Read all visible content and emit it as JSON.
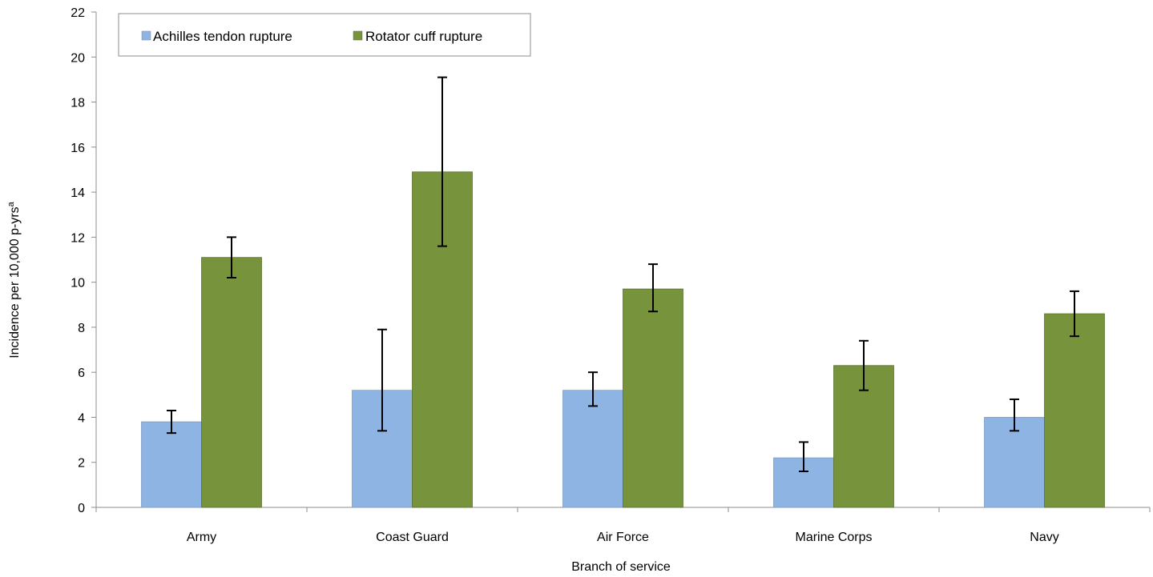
{
  "chart_data": {
    "type": "bar",
    "title": "",
    "xlabel": "Branch of service",
    "ylabel": "Incidence per 10,000 p-yrs",
    "ylabel_superscript": "a",
    "ylim": [
      0,
      22
    ],
    "yticks": [
      0,
      2,
      4,
      6,
      8,
      10,
      12,
      14,
      16,
      18,
      20,
      22
    ],
    "grid": false,
    "legend_position": "top-left",
    "categories": [
      "Army",
      "Coast Guard",
      "Air Force",
      "Marine Corps",
      "Navy"
    ],
    "series": [
      {
        "name": "Achilles tendon rupture",
        "color": "#8eb4e3",
        "values": [
          3.8,
          5.2,
          5.2,
          2.2,
          4.0
        ],
        "error_low": [
          3.3,
          3.4,
          4.5,
          1.6,
          3.4
        ],
        "error_high": [
          4.3,
          7.9,
          6.0,
          2.9,
          4.8
        ]
      },
      {
        "name": "Rotator cuff rupture",
        "color": "#77933c",
        "values": [
          11.1,
          14.9,
          9.7,
          6.3,
          8.6
        ],
        "error_low": [
          10.2,
          11.6,
          8.7,
          5.2,
          7.6
        ],
        "error_high": [
          12.0,
          19.1,
          10.8,
          7.4,
          9.6
        ]
      }
    ]
  }
}
